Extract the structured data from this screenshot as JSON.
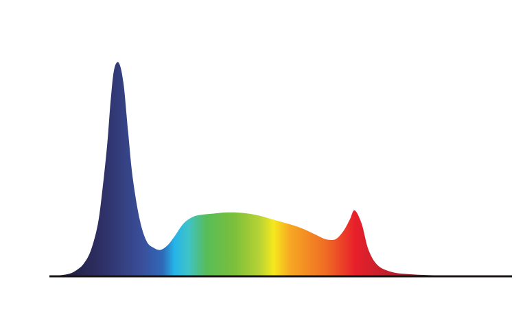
{
  "chart_data": {
    "type": "area",
    "title": "",
    "xlabel": "",
    "ylabel": "",
    "grid": false,
    "legend": "none",
    "xlim": [
      380,
      780
    ],
    "ylim": [
      0,
      1
    ],
    "series": [
      {
        "x": [
          380,
          396,
          404,
          410,
          416,
          422,
          426,
          430,
          433,
          436,
          440,
          444,
          448,
          452,
          458,
          464,
          470,
          476,
          482,
          488,
          496,
          504,
          512,
          522,
          532,
          542,
          552,
          562,
          572,
          582,
          592,
          602,
          610,
          618,
          624,
          628,
          632,
          636,
          640,
          644,
          650,
          656,
          664,
          676,
          690,
          710,
          740,
          780
        ],
        "y": [
          0.0,
          0.01,
          0.03,
          0.06,
          0.12,
          0.24,
          0.4,
          0.6,
          0.8,
          0.94,
          0.97,
          0.88,
          0.66,
          0.45,
          0.26,
          0.16,
          0.13,
          0.12,
          0.14,
          0.18,
          0.24,
          0.27,
          0.28,
          0.285,
          0.29,
          0.29,
          0.285,
          0.275,
          0.26,
          0.245,
          0.23,
          0.21,
          0.19,
          0.17,
          0.165,
          0.17,
          0.19,
          0.22,
          0.26,
          0.3,
          0.24,
          0.12,
          0.05,
          0.02,
          0.01,
          0.005,
          0.002,
          0.0
        ]
      }
    ],
    "gradient_colors": [
      {
        "offset": 0.0,
        "color": "#1a1a2e"
      },
      {
        "offset": 0.11,
        "color": "#2e2f63"
      },
      {
        "offset": 0.2,
        "color": "#3a4e9a"
      },
      {
        "offset": 0.245,
        "color": "#2f69b8"
      },
      {
        "offset": 0.27,
        "color": "#25b3e8"
      },
      {
        "offset": 0.3,
        "color": "#3ec3c8"
      },
      {
        "offset": 0.34,
        "color": "#58bd58"
      },
      {
        "offset": 0.4,
        "color": "#7cbf3b"
      },
      {
        "offset": 0.455,
        "color": "#b8d335"
      },
      {
        "offset": 0.485,
        "color": "#f5e81d"
      },
      {
        "offset": 0.52,
        "color": "#f7a823"
      },
      {
        "offset": 0.6,
        "color": "#ef6a24"
      },
      {
        "offset": 0.66,
        "color": "#e8202b"
      },
      {
        "offset": 0.75,
        "color": "#b4202c"
      },
      {
        "offset": 0.82,
        "color": "#6e1a20"
      },
      {
        "offset": 1.0,
        "color": "#3a1416"
      }
    ],
    "baseline_color": "#1a1515"
  }
}
